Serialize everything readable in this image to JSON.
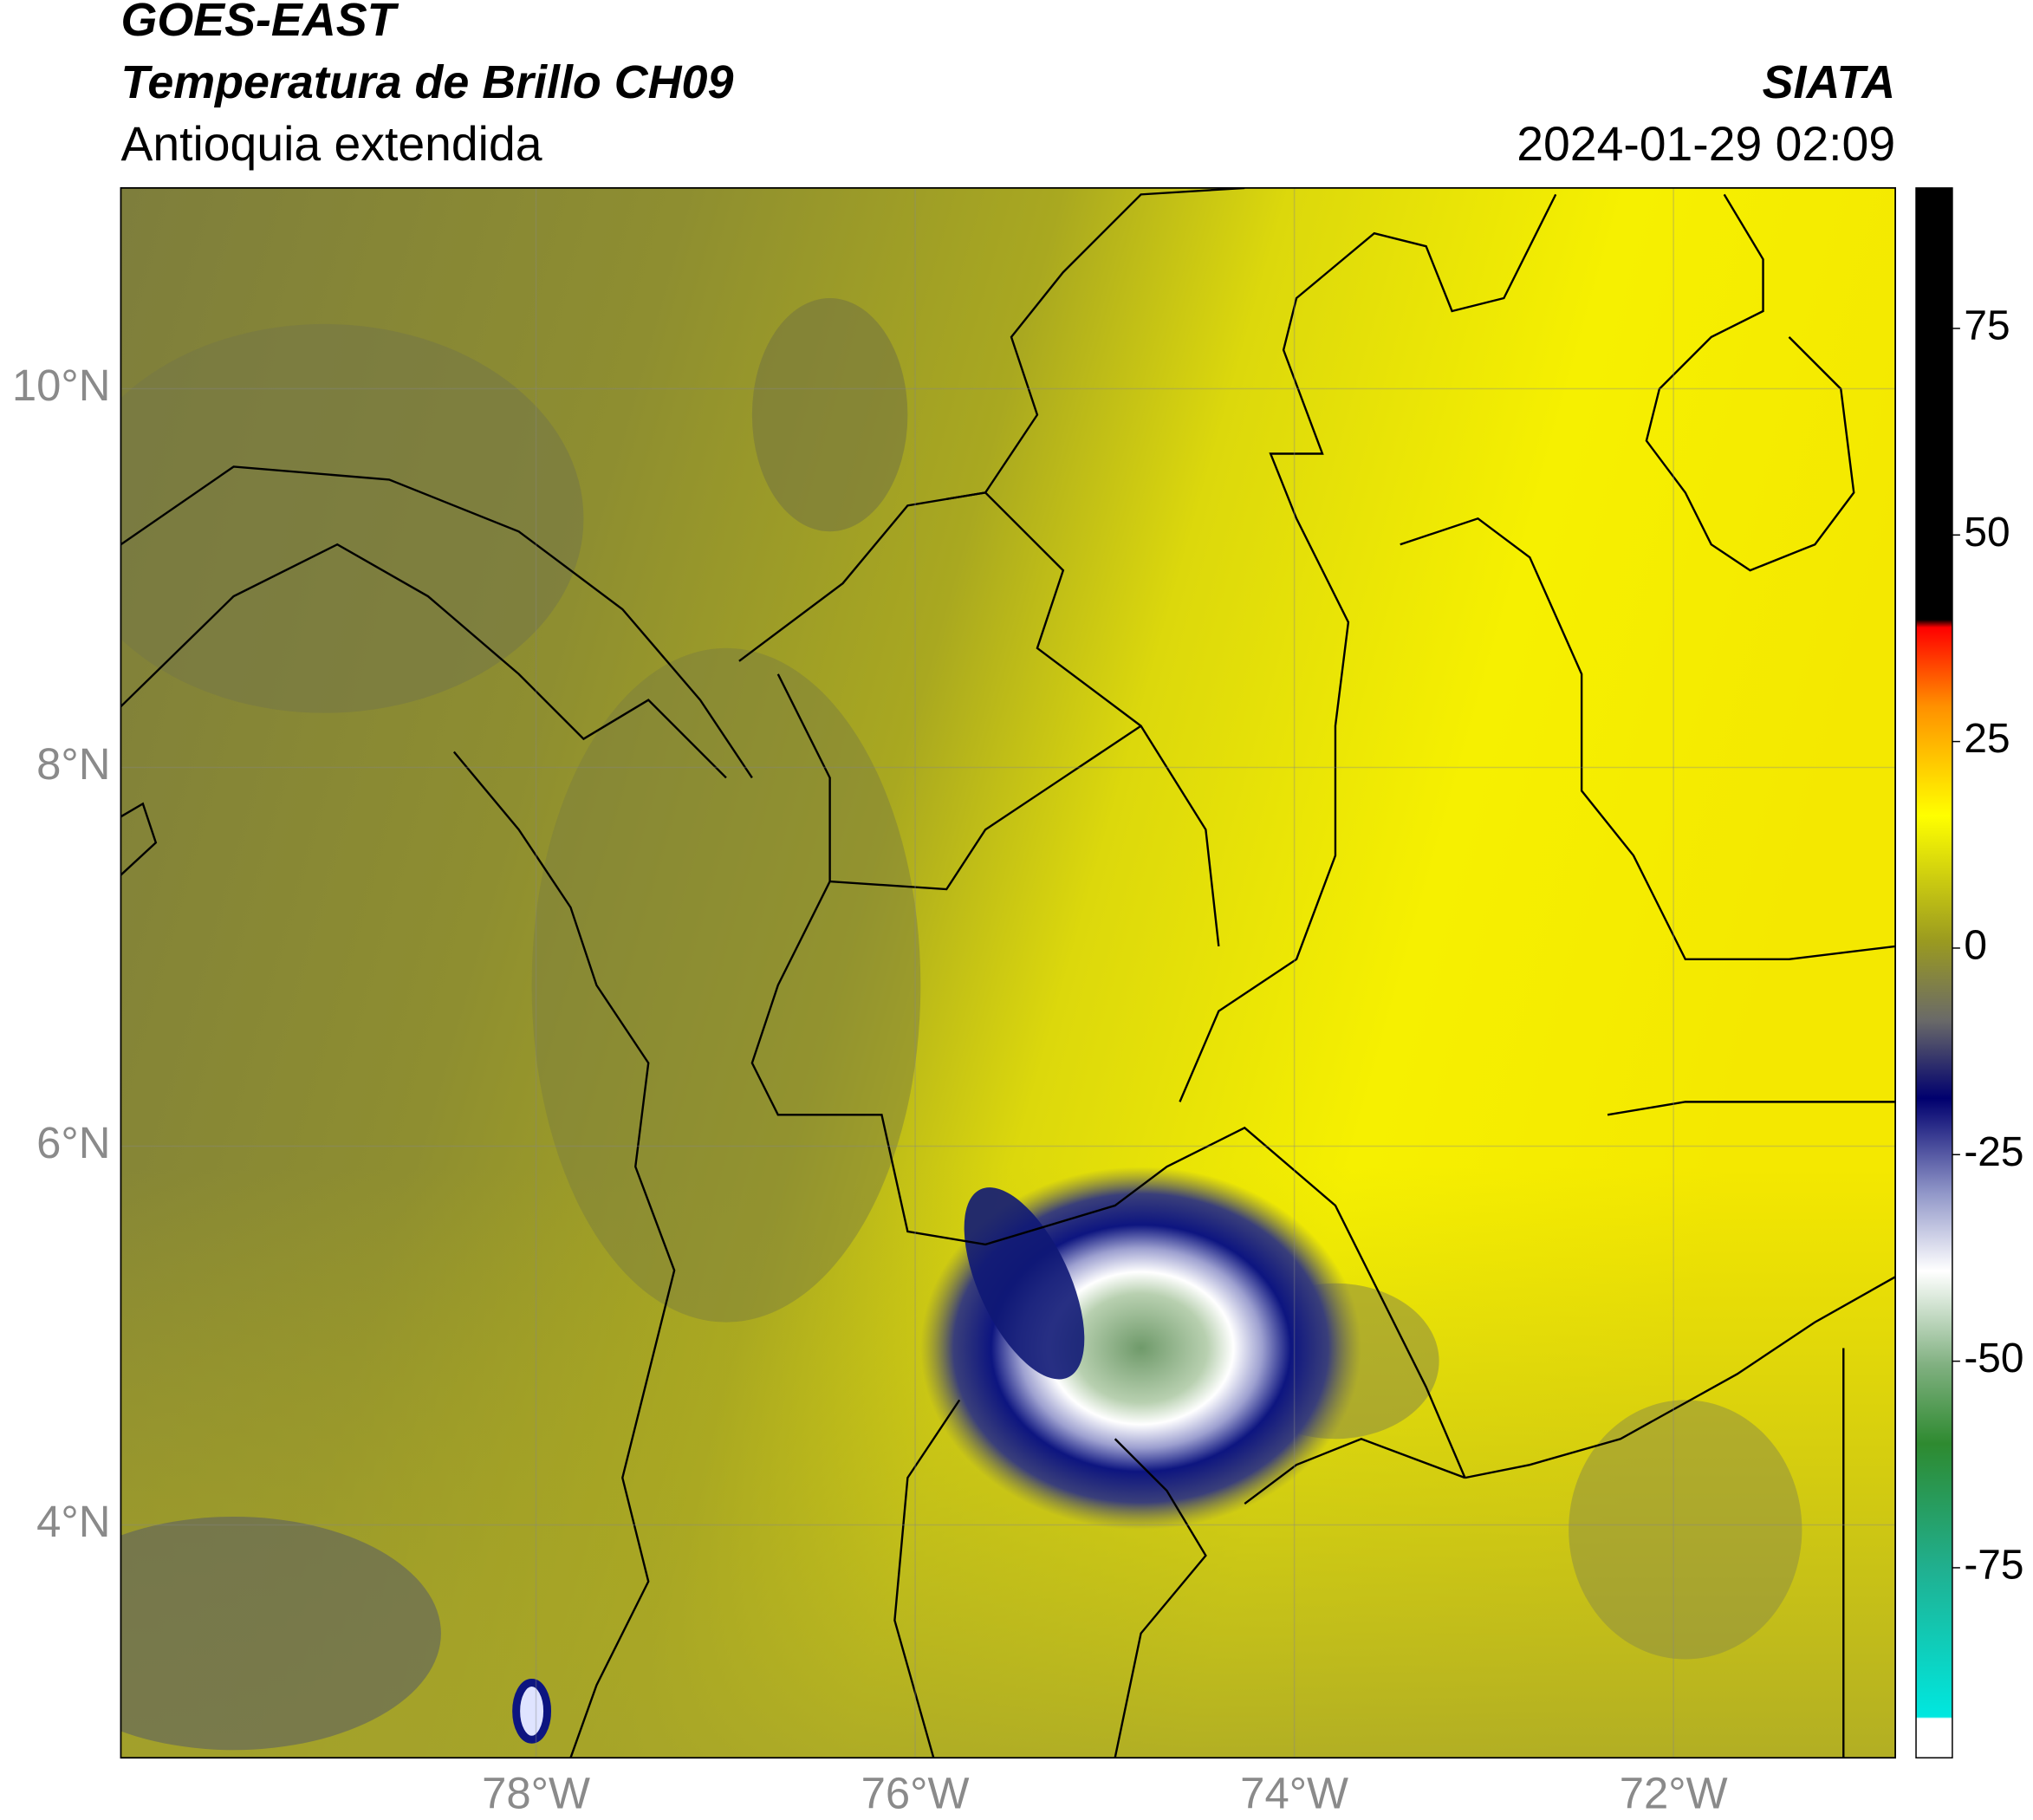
{
  "header": {
    "title": "GOES-EAST",
    "subtitle": "Temperatura de Brillo CH09",
    "region": "Antioquia extendida",
    "source": "SIATA",
    "datetime": "2024-01-29 02:09"
  },
  "map": {
    "xlim": [
      -80.19,
      -70.83
    ],
    "ylim": [
      2.77,
      11.06
    ],
    "xticks": [
      {
        "value": -78,
        "label": "78°W"
      },
      {
        "value": -76,
        "label": "76°W"
      },
      {
        "value": -74,
        "label": "74°W"
      },
      {
        "value": -72,
        "label": "72°W"
      }
    ],
    "yticks": [
      {
        "value": 10,
        "label": "10°N"
      },
      {
        "value": 8,
        "label": "8°N"
      },
      {
        "value": 6,
        "label": "6°N"
      },
      {
        "value": 4,
        "label": "4°N"
      }
    ]
  },
  "colorbar": {
    "lim": [
      -98,
      92
    ],
    "ticks": [
      75,
      50,
      25,
      0,
      -25,
      -50,
      -75
    ]
  }
}
